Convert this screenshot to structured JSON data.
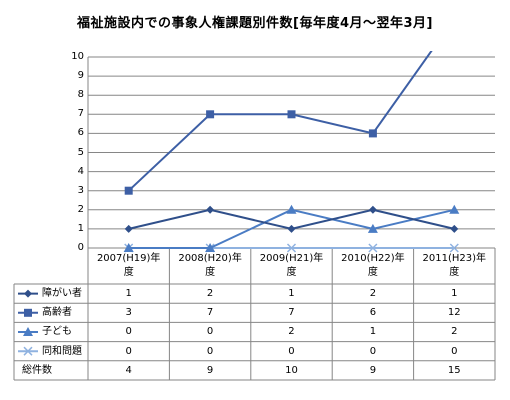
{
  "chart_data": {
    "type": "line",
    "title": "福祉施設内での事象人権課題別件数[毎年度4月～翌年3月]",
    "categories": [
      {
        "line1": "2007(H19)年",
        "line2": "度"
      },
      {
        "line1": "2008(H20)年",
        "line2": "度"
      },
      {
        "line1": "2009(H21)年",
        "line2": "度"
      },
      {
        "line1": "2010(H22)年",
        "line2": "度"
      },
      {
        "line1": "2011(H23)年",
        "line2": "度"
      }
    ],
    "ylim": [
      0,
      10
    ],
    "yticks": [
      "0",
      "1",
      "2",
      "3",
      "4",
      "5",
      "6",
      "7",
      "8",
      "9",
      "10"
    ],
    "grid": true,
    "legend": "data-table",
    "series": [
      {
        "name": "障がい者",
        "values": [
          1,
          2,
          1,
          2,
          1
        ],
        "marker": "diamond",
        "color": "#2f4f8a"
      },
      {
        "name": "高齢者",
        "values": [
          3,
          7,
          7,
          6,
          12
        ],
        "marker": "square",
        "color": "#3d5fa5"
      },
      {
        "name": "子ども",
        "values": [
          0,
          0,
          2,
          1,
          2
        ],
        "marker": "triangle",
        "color": "#4a7cc4"
      },
      {
        "name": "同和問題",
        "values": [
          0,
          0,
          0,
          0,
          0
        ],
        "marker": "x",
        "color": "#8fb2e0"
      }
    ],
    "totals": {
      "name": "総件数",
      "values": [
        4,
        9,
        10,
        9,
        15
      ]
    }
  }
}
